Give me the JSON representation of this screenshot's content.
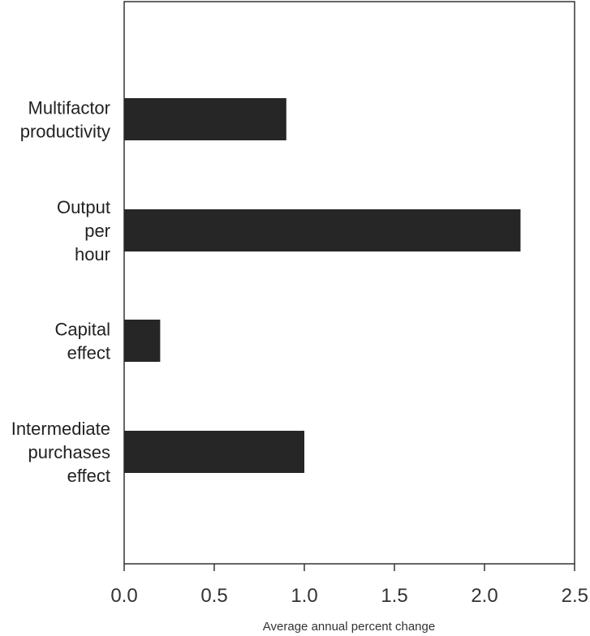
{
  "chart_data": {
    "type": "bar",
    "orientation": "horizontal",
    "categories": [
      [
        "Multifactor",
        "productivity"
      ],
      [
        "Output",
        "per",
        "hour"
      ],
      [
        "Capital",
        "effect"
      ],
      [
        "Intermediate",
        "purchases",
        "effect"
      ]
    ],
    "values": [
      0.9,
      2.2,
      0.2,
      1.0
    ],
    "xlabel": "Average annual percent change",
    "xlim": [
      0.0,
      2.5
    ],
    "xticks": [
      "0.0",
      "0.5",
      "1.0",
      "1.5",
      "2.0",
      "2.5"
    ],
    "grid": false,
    "bar_color": "#262626"
  }
}
